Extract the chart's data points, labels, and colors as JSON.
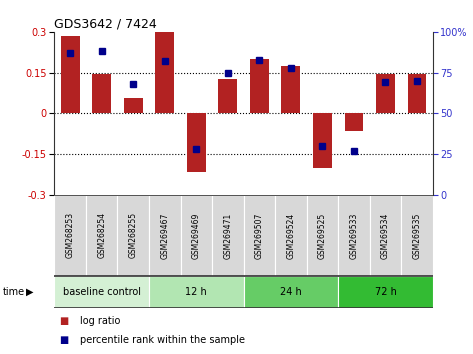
{
  "title": "GDS3642 / 7424",
  "samples": [
    "GSM268253",
    "GSM268254",
    "GSM268255",
    "GSM269467",
    "GSM269469",
    "GSM269471",
    "GSM269507",
    "GSM269524",
    "GSM269525",
    "GSM269533",
    "GSM269534",
    "GSM269535"
  ],
  "log_ratio": [
    0.285,
    0.145,
    0.055,
    0.305,
    -0.215,
    0.125,
    0.2,
    0.175,
    -0.2,
    -0.065,
    0.145,
    0.145
  ],
  "percentile": [
    87,
    88,
    68,
    82,
    28,
    75,
    83,
    78,
    30,
    27,
    69,
    70
  ],
  "groups": [
    {
      "label": "baseline control",
      "start": 0,
      "end": 3
    },
    {
      "label": "12 h",
      "start": 3,
      "end": 6
    },
    {
      "label": "24 h",
      "start": 6,
      "end": 9
    },
    {
      "label": "72 h",
      "start": 9,
      "end": 12
    }
  ],
  "group_colors": [
    "#d4f0d4",
    "#b2e6b2",
    "#66cc66",
    "#33bb33"
  ],
  "bar_color": "#b22222",
  "dot_color": "#00008b",
  "ylim_left": [
    -0.3,
    0.3
  ],
  "ylim_right": [
    0,
    100
  ],
  "yticks_left": [
    -0.3,
    -0.15,
    0,
    0.15,
    0.3
  ],
  "yticks_right": [
    0,
    25,
    50,
    75,
    100
  ],
  "hlines": [
    -0.15,
    0.0,
    0.15
  ],
  "background_color": "#ffffff",
  "label_log_ratio": "log ratio",
  "label_percentile": "percentile rank within the sample",
  "time_label": "time"
}
